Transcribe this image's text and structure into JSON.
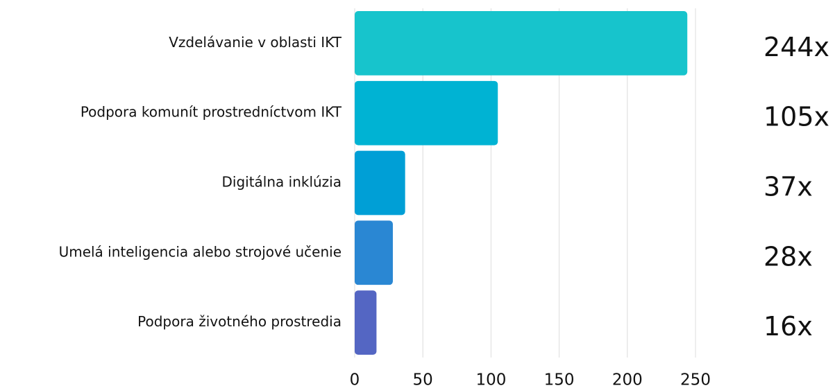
{
  "chart_data": {
    "type": "bar",
    "orientation": "horizontal",
    "categories": [
      "Vzdelávanie v oblasti IKT",
      "Podpora komunít prostredníctvom IKT",
      "Digitálna inklúzia",
      "Umelá inteligencia alebo strojové učenie",
      "Podpora životného prostredia"
    ],
    "values": [
      244,
      105,
      37,
      28,
      16
    ],
    "value_labels": [
      "244x",
      "105x",
      "37x",
      "28x",
      "16x"
    ],
    "colors": [
      "#17c4cc",
      "#00b3d3",
      "#009fd6",
      "#2a87d3",
      "#5466c3"
    ],
    "xlim": [
      0,
      250
    ],
    "xticks": [
      0,
      50,
      100,
      150,
      200,
      250
    ],
    "grid": true
  }
}
